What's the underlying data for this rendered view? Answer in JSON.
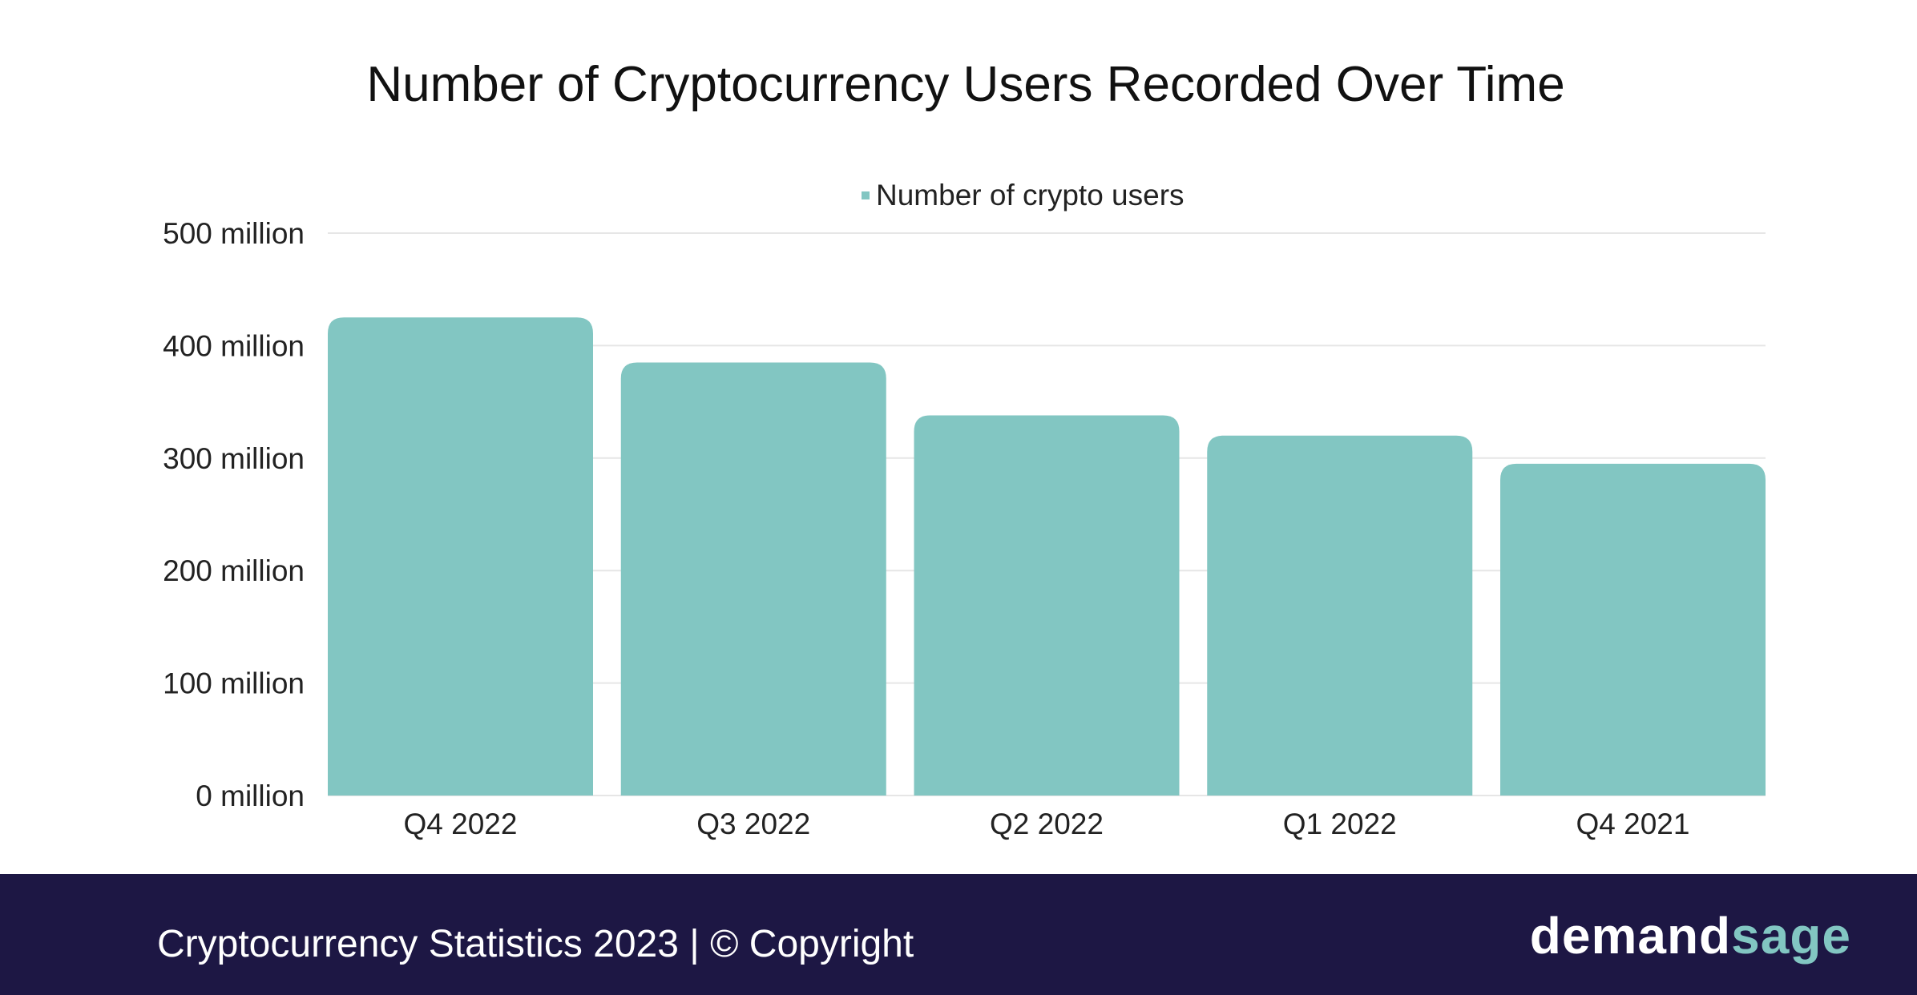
{
  "chart_data": {
    "type": "bar",
    "title": "Number of Cryptocurrency Users Recorded Over Time",
    "categories": [
      "Q4 2022",
      "Q3 2022",
      "Q2 2022",
      "Q1 2022",
      "Q4 2021"
    ],
    "series": [
      {
        "name": "Number of crypto users",
        "values": [
          425,
          385,
          338,
          320,
          295
        ]
      }
    ],
    "unit": "million",
    "yticks": [
      "0 million",
      "100 million",
      "200 million",
      "300 million",
      "400 million",
      "500 million"
    ],
    "ylim": [
      0,
      500
    ],
    "grid": true,
    "legend": "top-center",
    "bar_color": "#82c6c2"
  },
  "footer": {
    "text": "Cryptocurrency Statistics 2023 | © Copyright",
    "logo_part1": "demand",
    "logo_part2": "sage",
    "background": "#1d1744",
    "logo_accent": "#82c6c2"
  }
}
